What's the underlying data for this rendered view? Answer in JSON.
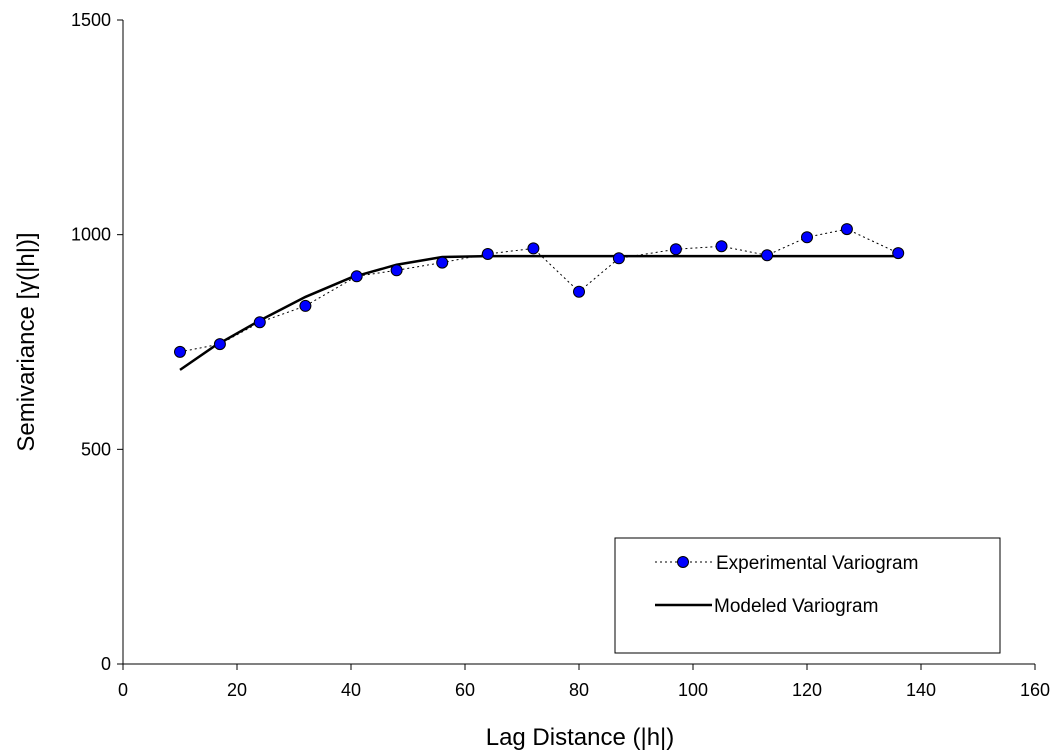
{
  "chart_data": {
    "type": "line",
    "xlabel": "Lag Distance (|h|)",
    "ylabel": "Semivariance [γ(|h|)]",
    "xlim": [
      0,
      160
    ],
    "ylim": [
      0,
      1500
    ],
    "x_ticks": [
      0,
      20,
      40,
      60,
      80,
      100,
      120,
      140,
      160
    ],
    "y_ticks": [
      0,
      500,
      1000,
      1500
    ],
    "grid": false,
    "legend_position": "bottom-right",
    "series": [
      {
        "name": "Experimental Variogram",
        "style": "dotted-line-with-markers",
        "color": "#0000ff",
        "x": [
          10,
          17,
          24,
          32,
          41,
          48,
          56,
          64,
          72,
          80,
          87,
          97,
          105,
          113,
          120,
          127,
          136
        ],
        "y": [
          727,
          745,
          796,
          834,
          903,
          917,
          935,
          955,
          968,
          867,
          945,
          966,
          973,
          952,
          994,
          1013,
          957
        ]
      },
      {
        "name": "Modeled Variogram",
        "style": "solid-line",
        "color": "#000000",
        "x": [
          10,
          16,
          24,
          32,
          40,
          48,
          56,
          64,
          72,
          80,
          88,
          96,
          104,
          112,
          120,
          128,
          136
        ],
        "y": [
          685,
          740,
          800,
          855,
          900,
          930,
          948,
          950,
          950,
          950,
          950,
          950,
          950,
          950,
          950,
          950,
          950
        ]
      }
    ]
  }
}
